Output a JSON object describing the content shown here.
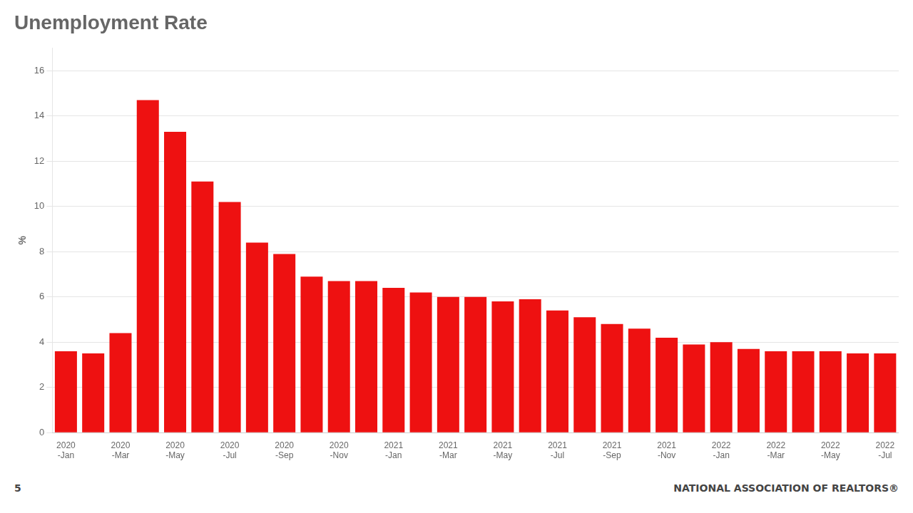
{
  "chart_data": {
    "type": "bar",
    "title": "Unemployment Rate",
    "ylabel": "%",
    "categories": [
      "2020-Jan",
      null,
      "2020-Mar",
      null,
      "2020-May",
      null,
      "2020-Jul",
      null,
      "2020-Sep",
      null,
      "2020-Nov",
      null,
      "2021-Jan",
      null,
      "2021-Mar",
      null,
      "2021-May",
      null,
      "2021-Jul",
      null,
      "2021-Sep",
      null,
      "2021-Nov",
      null,
      "2022-Jan",
      null,
      "2022-Mar",
      null,
      "2022-May",
      null,
      "2022-Jul"
    ],
    "values": [
      3.6,
      3.5,
      4.4,
      14.7,
      13.3,
      11.1,
      10.2,
      8.4,
      7.9,
      6.9,
      6.7,
      6.7,
      6.4,
      6.2,
      6.0,
      6.0,
      5.8,
      5.9,
      5.4,
      5.1,
      4.8,
      4.6,
      4.2,
      3.9,
      4.0,
      3.7,
      3.6,
      3.6,
      3.6,
      3.5,
      3.5
    ],
    "color": "#ee1111",
    "ylim": [
      0,
      17
    ],
    "yticks": [
      0,
      2,
      4,
      6,
      8,
      10,
      12,
      14,
      16
    ],
    "grid": true,
    "annotations": [
      "5",
      "NATIONAL ASSOCIATION OF REALTORS®"
    ]
  }
}
